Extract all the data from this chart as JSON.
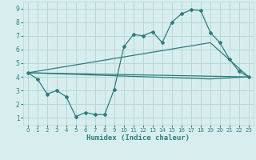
{
  "line1_x": [
    0,
    1,
    2,
    3,
    4,
    5,
    6,
    7,
    8,
    9,
    10,
    11,
    12,
    13,
    14,
    15,
    16,
    17,
    18,
    19,
    20,
    21,
    22,
    23
  ],
  "line1_y": [
    4.3,
    3.85,
    2.75,
    3.0,
    2.55,
    1.1,
    1.4,
    1.25,
    1.25,
    3.1,
    6.2,
    7.1,
    7.0,
    7.3,
    6.5,
    8.0,
    8.6,
    8.9,
    8.85,
    7.25,
    6.5,
    5.3,
    4.4,
    4.0
  ],
  "line2_x": [
    0,
    23
  ],
  "line2_y": [
    4.3,
    4.0
  ],
  "line3_x": [
    0,
    19,
    23
  ],
  "line3_y": [
    4.3,
    6.5,
    4.0
  ],
  "line4_x": [
    0,
    19,
    23
  ],
  "line4_y": [
    4.3,
    3.85,
    4.0
  ],
  "line_color": "#2e7d7d",
  "bg_color": "#d8eeee",
  "grid_color": "#b8d8d8",
  "xlabel": "Humidex (Indice chaleur)",
  "ylim": [
    0.5,
    9.5
  ],
  "xlim": [
    -0.5,
    23.5
  ],
  "yticks": [
    1,
    2,
    3,
    4,
    5,
    6,
    7,
    8,
    9
  ],
  "xticks": [
    0,
    1,
    2,
    3,
    4,
    5,
    6,
    7,
    8,
    9,
    10,
    11,
    12,
    13,
    14,
    15,
    16,
    17,
    18,
    19,
    20,
    21,
    22,
    23
  ]
}
